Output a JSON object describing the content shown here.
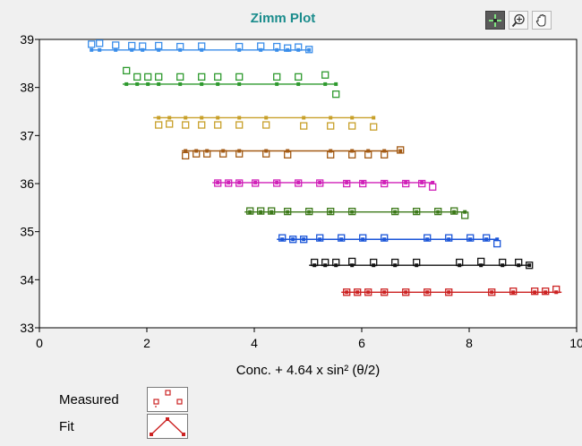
{
  "chart_data": {
    "type": "scatter",
    "title": "Zimm Plot",
    "xlabel": "Conc. + 4.64 x sin² (θ/2)",
    "ylabel": "",
    "xlim": [
      0,
      10
    ],
    "ylim": [
      33,
      39
    ],
    "xticks": [
      "0",
      "2",
      "4",
      "6",
      "8",
      "10"
    ],
    "yticks": [
      "33",
      "34",
      "35",
      "36",
      "37",
      "38",
      "39"
    ],
    "grid": false,
    "legend": {
      "placement": "bottom-left",
      "entries": [
        {
          "label": "Measured",
          "style": "markers"
        },
        {
          "label": "Fit",
          "style": "line-with-points"
        }
      ]
    },
    "series": [
      {
        "color": "#3b8eea",
        "fit_y": 38.78,
        "fit_x": [
          0.97,
          5.05
        ],
        "points": [
          [
            0.97,
            38.9
          ],
          [
            1.12,
            38.92
          ],
          [
            1.42,
            38.88
          ],
          [
            1.72,
            38.87
          ],
          [
            1.92,
            38.86
          ],
          [
            2.22,
            38.87
          ],
          [
            2.62,
            38.85
          ],
          [
            3.02,
            38.86
          ],
          [
            3.72,
            38.85
          ],
          [
            4.12,
            38.86
          ],
          [
            4.42,
            38.85
          ],
          [
            4.62,
            38.82
          ],
          [
            4.82,
            38.84
          ],
          [
            5.02,
            38.79
          ]
        ]
      },
      {
        "color": "#2e9a2e",
        "fit_y": 38.07,
        "fit_x": [
          1.55,
          5.55
        ],
        "points": [
          [
            1.62,
            38.35
          ],
          [
            1.82,
            38.22
          ],
          [
            2.02,
            38.22
          ],
          [
            2.22,
            38.22
          ],
          [
            2.62,
            38.22
          ],
          [
            3.02,
            38.22
          ],
          [
            3.32,
            38.22
          ],
          [
            3.72,
            38.22
          ],
          [
            4.42,
            38.22
          ],
          [
            4.82,
            38.22
          ],
          [
            5.32,
            38.26
          ],
          [
            5.52,
            37.86
          ]
        ]
      },
      {
        "color": "#c8a02a",
        "fit_y": 37.37,
        "fit_x": [
          2.12,
          6.22
        ],
        "points": [
          [
            2.22,
            37.22
          ],
          [
            2.42,
            37.24
          ],
          [
            2.72,
            37.22
          ],
          [
            3.02,
            37.22
          ],
          [
            3.32,
            37.22
          ],
          [
            3.72,
            37.22
          ],
          [
            4.22,
            37.22
          ],
          [
            4.92,
            37.2
          ],
          [
            5.42,
            37.2
          ],
          [
            5.82,
            37.2
          ],
          [
            6.22,
            37.18
          ]
        ]
      },
      {
        "color": "#a35a14",
        "fit_y": 36.68,
        "fit_x": [
          2.65,
          6.68
        ],
        "points": [
          [
            2.72,
            36.58
          ],
          [
            2.92,
            36.62
          ],
          [
            3.12,
            36.62
          ],
          [
            3.42,
            36.62
          ],
          [
            3.72,
            36.62
          ],
          [
            4.22,
            36.62
          ],
          [
            4.62,
            36.6
          ],
          [
            5.42,
            36.6
          ],
          [
            5.82,
            36.6
          ],
          [
            6.12,
            36.6
          ],
          [
            6.42,
            36.6
          ],
          [
            6.72,
            36.7
          ]
        ]
      },
      {
        "color": "#d020b8",
        "fit_y": 36.02,
        "fit_x": [
          3.22,
          7.32
        ],
        "points": [
          [
            3.32,
            36.01
          ],
          [
            3.52,
            36.01
          ],
          [
            3.72,
            36.01
          ],
          [
            4.02,
            36.01
          ],
          [
            4.42,
            36.01
          ],
          [
            4.82,
            36.01
          ],
          [
            5.22,
            36.01
          ],
          [
            5.72,
            36.0
          ],
          [
            6.02,
            36.0
          ],
          [
            6.42,
            36.0
          ],
          [
            6.82,
            36.0
          ],
          [
            7.12,
            36.0
          ],
          [
            7.32,
            35.93
          ]
        ]
      },
      {
        "color": "#3d7a1a",
        "fit_y": 35.41,
        "fit_x": [
          3.82,
          7.92
        ],
        "points": [
          [
            3.92,
            35.43
          ],
          [
            4.12,
            35.43
          ],
          [
            4.32,
            35.43
          ],
          [
            4.62,
            35.42
          ],
          [
            5.02,
            35.42
          ],
          [
            5.42,
            35.42
          ],
          [
            5.82,
            35.42
          ],
          [
            6.62,
            35.42
          ],
          [
            7.02,
            35.42
          ],
          [
            7.42,
            35.42
          ],
          [
            7.72,
            35.43
          ],
          [
            7.92,
            35.34
          ]
        ]
      },
      {
        "color": "#1a55d8",
        "fit_y": 34.84,
        "fit_x": [
          4.42,
          8.52
        ],
        "points": [
          [
            4.52,
            34.87
          ],
          [
            4.72,
            34.84
          ],
          [
            4.92,
            34.84
          ],
          [
            5.22,
            34.87
          ],
          [
            5.62,
            34.87
          ],
          [
            6.02,
            34.87
          ],
          [
            6.42,
            34.87
          ],
          [
            7.22,
            34.87
          ],
          [
            7.62,
            34.87
          ],
          [
            8.02,
            34.87
          ],
          [
            8.32,
            34.87
          ],
          [
            8.52,
            34.75
          ]
        ]
      },
      {
        "color": "#111111",
        "fit_y": 34.3,
        "fit_x": [
          5.02,
          9.12
        ],
        "points": [
          [
            5.12,
            34.36
          ],
          [
            5.32,
            34.36
          ],
          [
            5.52,
            34.36
          ],
          [
            5.82,
            34.38
          ],
          [
            6.22,
            34.36
          ],
          [
            6.62,
            34.36
          ],
          [
            7.02,
            34.36
          ],
          [
            7.82,
            34.36
          ],
          [
            8.22,
            34.38
          ],
          [
            8.62,
            34.36
          ],
          [
            8.92,
            34.36
          ],
          [
            9.12,
            34.3
          ]
        ]
      },
      {
        "color": "#cc2222",
        "fit_y": 33.74,
        "fit_x": [
          5.62,
          9.72
        ],
        "points": [
          [
            5.72,
            33.74
          ],
          [
            5.92,
            33.74
          ],
          [
            6.12,
            33.74
          ],
          [
            6.42,
            33.74
          ],
          [
            6.82,
            33.74
          ],
          [
            7.22,
            33.74
          ],
          [
            7.62,
            33.74
          ],
          [
            8.42,
            33.74
          ],
          [
            8.82,
            33.76
          ],
          [
            9.22,
            33.76
          ],
          [
            9.42,
            33.76
          ],
          [
            9.62,
            33.8
          ]
        ]
      }
    ]
  }
}
